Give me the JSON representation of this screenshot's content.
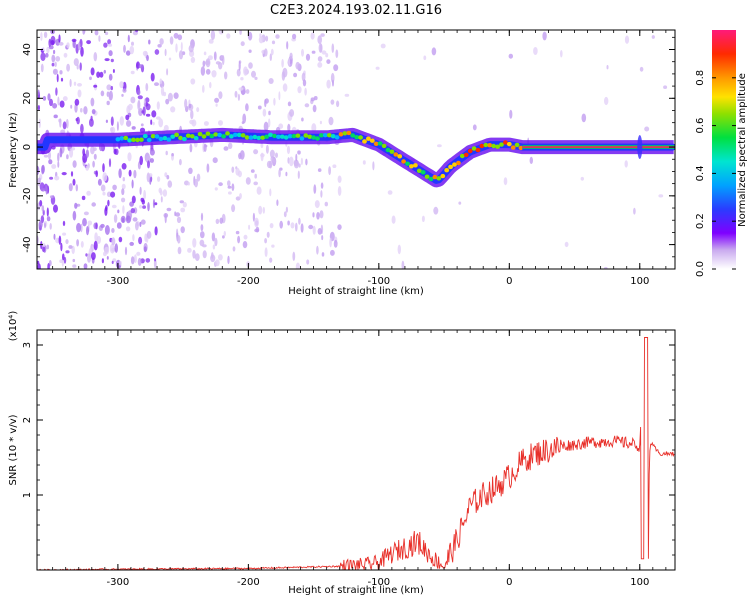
{
  "title": "C2E3.2024.193.02.11.G16",
  "chart_data": [
    {
      "type": "heatmap",
      "xlabel": "Height of straight line (km)",
      "ylabel": "Frequency (Hz)",
      "xlim": [
        -362,
        127
      ],
      "ylim": [
        -50,
        48
      ],
      "xticks": [
        -300,
        -200,
        -100,
        0,
        100
      ],
      "yticks": [
        -40,
        -20,
        0,
        20,
        40
      ],
      "colorbar": {
        "label": "Normalized spectral amplitude",
        "ticks": [
          0.0,
          0.2,
          0.4,
          0.6,
          0.8
        ],
        "range": [
          0,
          1
        ]
      },
      "ridge": [
        {
          "x": -355,
          "y": 3
        },
        {
          "x": -300,
          "y": 3
        },
        {
          "x": -260,
          "y": 4
        },
        {
          "x": -220,
          "y": 5
        },
        {
          "x": -180,
          "y": 4
        },
        {
          "x": -140,
          "y": 4
        },
        {
          "x": -120,
          "y": 5
        },
        {
          "x": -100,
          "y": 1
        },
        {
          "x": -85,
          "y": -4
        },
        {
          "x": -70,
          "y": -9
        },
        {
          "x": -55,
          "y": -14
        },
        {
          "x": -45,
          "y": -8
        },
        {
          "x": -30,
          "y": -2
        },
        {
          "x": -15,
          "y": 1
        },
        {
          "x": 0,
          "y": 1
        },
        {
          "x": 10,
          "y": 0
        },
        {
          "x": 127,
          "y": 0
        }
      ]
    },
    {
      "type": "line",
      "xlabel": "Height of straight line (km)",
      "ylabel": "SNR (10 * v/v)",
      "y_multiplier": "(x10⁴)",
      "xlim": [
        -362,
        127
      ],
      "ylim": [
        0,
        3.2
      ],
      "xticks": [
        -300,
        -200,
        -100,
        0,
        100
      ],
      "yticks": [
        1,
        2,
        3
      ],
      "series": [
        {
          "color": "#e8302a",
          "x": [
            -362,
            -300,
            -200,
            -130,
            -110,
            -100,
            -90,
            -80,
            -70,
            -60,
            -50,
            -40,
            -30,
            -20,
            -10,
            0,
            10,
            20,
            30,
            40,
            60,
            80,
            95,
            100,
            103,
            105,
            108,
            115,
            127
          ],
          "y": [
            0.0,
            0.01,
            0.02,
            0.05,
            0.07,
            0.1,
            0.22,
            0.3,
            0.38,
            0.18,
            0.05,
            0.4,
            0.85,
            1.0,
            1.1,
            1.25,
            1.45,
            1.55,
            1.6,
            1.65,
            1.7,
            1.72,
            1.68,
            1.65,
            2.9,
            0.2,
            1.7,
            1.55,
            1.55
          ]
        }
      ]
    }
  ]
}
